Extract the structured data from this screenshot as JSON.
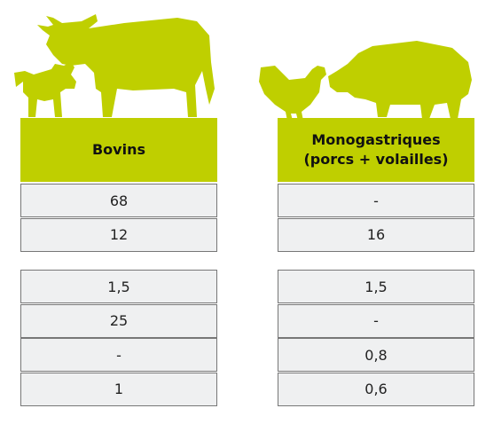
{
  "columns": [
    {
      "header": [
        "Bovins"
      ],
      "groups": [
        [
          "68",
          "12"
        ],
        [
          "1,5",
          "25",
          "-",
          "1"
        ]
      ]
    },
    {
      "header": [
        "Monogastriques",
        "(porcs + volailles)"
      ],
      "groups": [
        [
          "-",
          "16"
        ],
        [
          "1,5",
          "-",
          "0,8",
          "0,6"
        ]
      ]
    }
  ]
}
